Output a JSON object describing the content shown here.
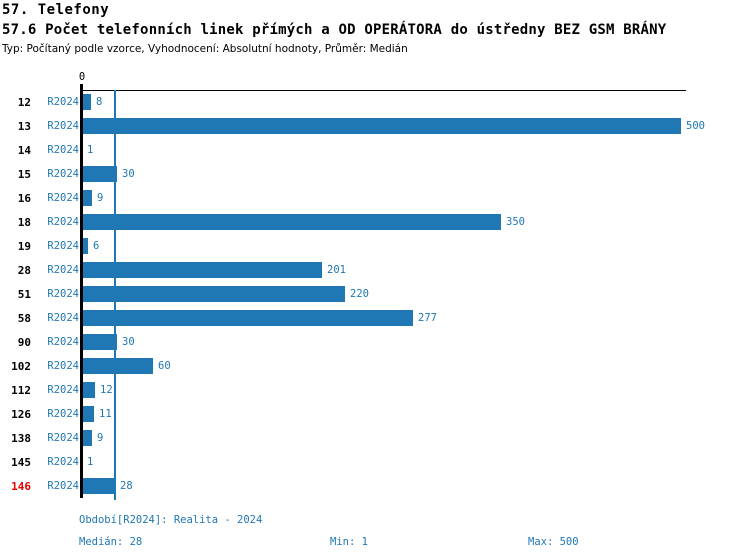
{
  "page": {
    "title": "57. Telefony",
    "subtitle": "57.6 Počet telefonních linek přímých a OD OPERÁTORA do ústředny BEZ GSM BRÁNY",
    "meta": "Typ: Počítaný podle vzorce, Vyhodnocení: Absolutní hodnoty, Průměr: Medián"
  },
  "chart_data": {
    "type": "bar",
    "orientation": "horizontal",
    "title": "57.6 Počet telefonních linek přímých a OD OPERÁTORA do ústředny BEZ GSM BRÁNY",
    "axis_zero_label": "0",
    "series_label": "R2024",
    "categories": [
      "12",
      "13",
      "14",
      "15",
      "16",
      "18",
      "19",
      "28",
      "51",
      "58",
      "90",
      "102",
      "112",
      "126",
      "138",
      "145",
      "146"
    ],
    "values": [
      8,
      500,
      1,
      30,
      9,
      350,
      6,
      201,
      220,
      277,
      30,
      60,
      12,
      11,
      9,
      1,
      28
    ],
    "highlighted_category": "146",
    "median_line_value": 28,
    "xlim": [
      0,
      500
    ],
    "grid": false,
    "legend": false,
    "bar_color": "#1f77b4",
    "text_color": "#1f77b4",
    "highlight_color": "#e80000",
    "axis_color": "#000000"
  },
  "footer": {
    "period": "Období[R2024]: Realita - 2024",
    "median": "Medián: 28",
    "min": "Min: 1",
    "max": "Max: 500"
  }
}
